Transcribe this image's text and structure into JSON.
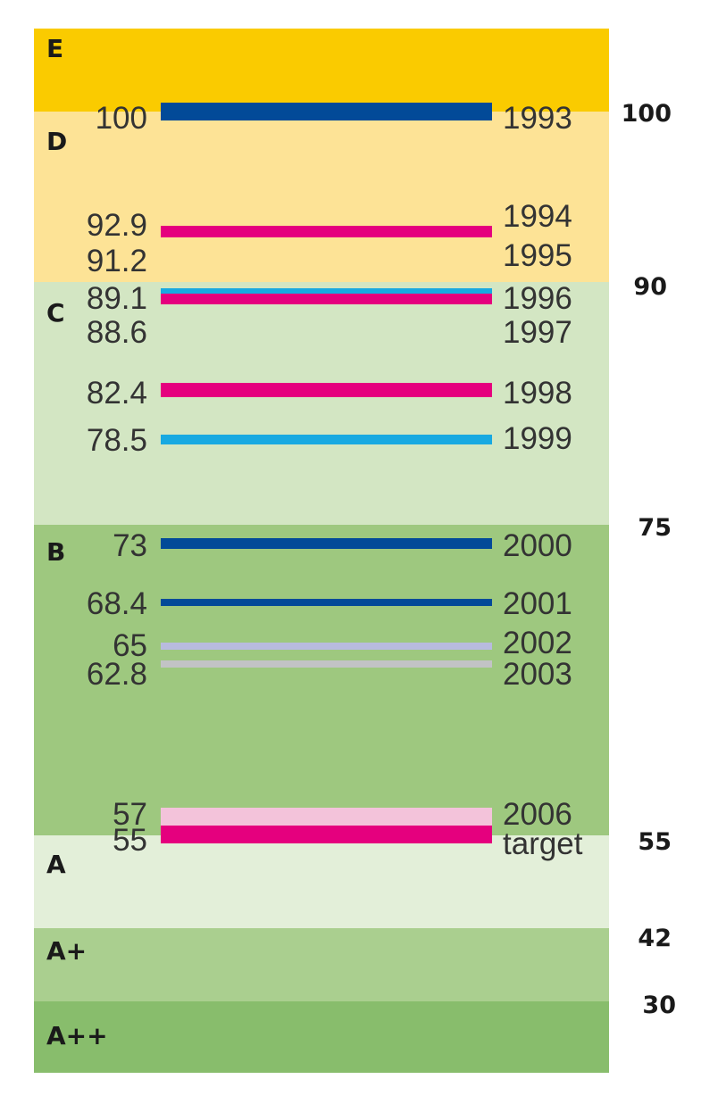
{
  "chart_data": {
    "type": "bar",
    "bands": [
      {
        "label": "E",
        "color": "#FACB00"
      },
      {
        "label": "D",
        "color": "#FDE396"
      },
      {
        "label": "C",
        "color": "#D3E6C3"
      },
      {
        "label": "B",
        "color": "#9EC87F"
      },
      {
        "label": "A",
        "color": "#E3EFD9"
      },
      {
        "label": "A+",
        "color": "#AACF8F"
      },
      {
        "label": "A++",
        "color": "#88BD6C"
      }
    ],
    "scale_ticks": [
      "100",
      "90",
      "75",
      "55",
      "42",
      "30"
    ],
    "series": [
      {
        "year": "1993",
        "value": 100,
        "value_label": "100",
        "color": "#024A98",
        "weight": "thick"
      },
      {
        "year": "1994",
        "value": 92.9,
        "value_label": "92.9",
        "color": "#E5007E",
        "weight": "medium"
      },
      {
        "year": "1995",
        "value": 91.2,
        "value_label": "91.2",
        "color": "",
        "weight": "none"
      },
      {
        "year": "1996",
        "value": 89.1,
        "value_label": "89.1",
        "color": "#18A9E1",
        "weight": "medium"
      },
      {
        "year": "1997",
        "value": 88.6,
        "value_label": "88.6",
        "color": "#E5007E",
        "weight": "medium"
      },
      {
        "year": "1998",
        "value": 82.4,
        "value_label": "82.4",
        "color": "#E5007E",
        "weight": "thick"
      },
      {
        "year": "1999",
        "value": 78.5,
        "value_label": "78.5",
        "color": "#18A9E1",
        "weight": "medium"
      },
      {
        "year": "2000",
        "value": 73,
        "value_label": "73",
        "color": "#024A98",
        "weight": "medium"
      },
      {
        "year": "2001",
        "value": 68.4,
        "value_label": "68.4",
        "color": "#024A98",
        "weight": "thin"
      },
      {
        "year": "2002",
        "value": 65,
        "value_label": "65",
        "color": "#B8BBDE",
        "weight": "thin"
      },
      {
        "year": "2003",
        "value": 62.8,
        "value_label": "62.8",
        "color": "#C2C3C5",
        "weight": "thin"
      },
      {
        "year": "2006",
        "value": 57,
        "value_label": "57",
        "color": "#F3C3DA",
        "weight": "thick"
      },
      {
        "year": "target",
        "value": 55,
        "value_label": "55",
        "color": "#E5007E",
        "weight": "thick"
      }
    ]
  }
}
